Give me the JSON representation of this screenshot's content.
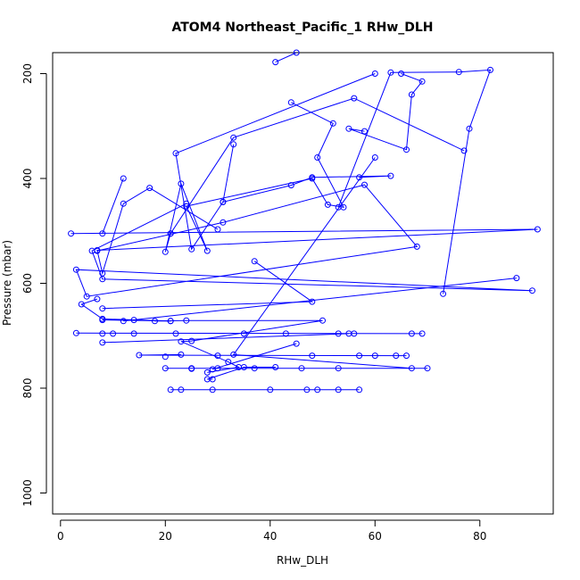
{
  "chart_data": {
    "type": "scatter",
    "title": "ATOM4 Northeast_Pacific_1 RHw_DLH",
    "xlabel": "RHw_DLH",
    "ylabel": "Pressure (mbar)",
    "xlim": [
      -1.5,
      94
    ],
    "ylim": [
      1040,
      160
    ],
    "y_inverted": true,
    "x_ticks": [
      0,
      20,
      40,
      60,
      80
    ],
    "y_ticks": [
      200,
      400,
      600,
      800,
      1000
    ],
    "grid": false,
    "color": "#0000ff",
    "marker": "open-circle",
    "series": [
      {
        "points": [
          [
            41,
            178
          ],
          [
            45,
            160
          ],
          [
            44,
            255
          ],
          [
            52,
            295
          ],
          [
            49,
            360
          ],
          [
            54,
            455
          ],
          [
            51,
            450
          ],
          [
            48,
            400
          ],
          [
            24,
            453
          ],
          [
            28,
            538
          ],
          [
            23,
            410
          ],
          [
            20,
            540
          ],
          [
            21,
            505
          ],
          [
            2,
            505
          ],
          [
            91,
            497
          ],
          [
            7,
            537
          ],
          [
            8,
            581
          ],
          [
            12,
            448
          ],
          [
            17,
            418
          ],
          [
            30,
            497
          ],
          [
            8,
            505
          ],
          [
            12,
            400
          ],
          [
            31,
            445
          ],
          [
            25,
            535
          ],
          [
            22,
            352
          ],
          [
            24,
            448
          ],
          [
            6,
            538
          ],
          [
            8,
            592
          ],
          [
            90,
            614
          ],
          [
            3,
            574
          ],
          [
            5,
            625
          ],
          [
            68,
            530
          ],
          [
            58,
            412
          ],
          [
            31,
            484
          ],
          [
            7,
            538
          ],
          [
            14,
            670
          ],
          [
            8,
            670
          ],
          [
            21,
            672
          ],
          [
            18,
            672
          ],
          [
            24,
            671
          ],
          [
            50,
            671
          ],
          [
            25,
            710
          ],
          [
            23,
            711
          ],
          [
            32,
            750
          ],
          [
            34,
            760
          ],
          [
            28,
            770
          ],
          [
            37,
            558
          ],
          [
            48,
            635
          ],
          [
            8,
            648
          ],
          [
            7,
            630
          ],
          [
            4,
            640
          ],
          [
            8,
            668
          ],
          [
            21,
            672
          ],
          [
            33,
            335
          ],
          [
            31,
            445
          ],
          [
            44,
            413
          ],
          [
            48,
            398
          ],
          [
            63,
            395
          ],
          [
            57,
            398
          ],
          [
            3,
            695
          ],
          [
            10,
            696
          ],
          [
            8,
            696
          ],
          [
            14,
            696
          ],
          [
            22,
            696
          ],
          [
            35,
            696
          ],
          [
            43,
            696
          ],
          [
            53,
            696
          ],
          [
            67,
            696
          ],
          [
            69,
            696
          ],
          [
            56,
            696
          ],
          [
            45,
            715
          ],
          [
            29,
            764
          ],
          [
            23,
            736
          ],
          [
            15,
            737
          ],
          [
            20,
            740
          ],
          [
            30,
            738
          ],
          [
            48,
            738
          ],
          [
            57,
            738
          ],
          [
            64,
            738
          ],
          [
            60,
            738
          ],
          [
            66,
            738
          ],
          [
            70,
            762
          ],
          [
            53,
            762
          ],
          [
            46,
            762
          ],
          [
            37,
            762
          ],
          [
            30,
            762
          ],
          [
            25,
            762
          ],
          [
            20,
            762
          ],
          [
            21,
            803
          ],
          [
            23,
            803
          ],
          [
            29,
            803
          ],
          [
            40,
            803
          ],
          [
            47,
            803
          ],
          [
            49,
            803
          ],
          [
            53,
            803
          ],
          [
            57,
            803
          ],
          [
            29,
            783
          ],
          [
            28,
            783
          ],
          [
            35,
            760
          ],
          [
            41,
            760
          ],
          [
            60,
            200
          ],
          [
            65,
            200
          ],
          [
            69,
            215
          ],
          [
            67,
            240
          ],
          [
            66,
            345
          ],
          [
            55,
            305
          ],
          [
            58,
            310
          ],
          [
            53,
            455
          ],
          [
            63,
            198
          ],
          [
            76,
            197
          ],
          [
            82,
            193
          ],
          [
            78,
            305
          ],
          [
            73,
            620
          ],
          [
            77,
            347
          ],
          [
            56,
            247
          ],
          [
            87,
            590
          ],
          [
            12,
            672
          ],
          [
            33,
            322
          ],
          [
            21,
            505
          ],
          [
            60,
            360
          ],
          [
            33,
            736
          ],
          [
            67,
            762
          ],
          [
            55,
            696
          ],
          [
            8,
            713
          ],
          [
            25,
            763
          ]
        ],
        "paths": [
          [
            [
              41,
              178
            ],
            [
              45,
              160
            ]
          ],
          [
            [
              44,
              255
            ],
            [
              52,
              295
            ],
            [
              49,
              360
            ],
            [
              54,
              455
            ],
            [
              51,
              450
            ],
            [
              48,
              400
            ],
            [
              24,
              453
            ],
            [
              28,
              538
            ],
            [
              23,
              410
            ],
            [
              20,
              540
            ],
            [
              21,
              505
            ]
          ],
          [
            [
              2,
              505
            ],
            [
              91,
              497
            ],
            [
              7,
              537
            ],
            [
              8,
              581
            ],
            [
              12,
              448
            ],
            [
              17,
              418
            ],
            [
              30,
              497
            ]
          ],
          [
            [
              8,
              505
            ],
            [
              12,
              400
            ]
          ],
          [
            [
              31,
              445
            ],
            [
              25,
              535
            ],
            [
              22,
              352
            ],
            [
              60,
              200
            ]
          ],
          [
            [
              24,
              448
            ],
            [
              6,
              538
            ],
            [
              8,
              592
            ],
            [
              90,
              614
            ],
            [
              3,
              574
            ],
            [
              5,
              625
            ],
            [
              68,
              530
            ],
            [
              58,
              412
            ],
            [
              31,
              484
            ],
            [
              7,
              538
            ]
          ],
          [
            [
              14,
              670
            ],
            [
              8,
              670
            ],
            [
              21,
              672
            ],
            [
              18,
              672
            ],
            [
              24,
              671
            ],
            [
              50,
              671
            ],
            [
              25,
              710
            ],
            [
              23,
              711
            ],
            [
              32,
              750
            ],
            [
              34,
              760
            ],
            [
              28,
              770
            ]
          ],
          [
            [
              37,
              558
            ],
            [
              48,
              635
            ],
            [
              8,
              648
            ]
          ],
          [
            [
              7,
              630
            ],
            [
              4,
              640
            ],
            [
              8,
              668
            ],
            [
              21,
              672
            ]
          ],
          [
            [
              33,
              335
            ],
            [
              31,
              445
            ],
            [
              44,
              413
            ],
            [
              48,
              398
            ],
            [
              63,
              395
            ],
            [
              57,
              398
            ]
          ],
          [
            [
              3,
              695
            ],
            [
              69,
              696
            ]
          ],
          [
            [
              45,
              715
            ],
            [
              29,
              764
            ]
          ],
          [
            [
              23,
              736
            ],
            [
              15,
              737
            ],
            [
              66,
              738
            ]
          ],
          [
            [
              20,
              762
            ],
            [
              70,
              762
            ]
          ],
          [
            [
              21,
              803
            ],
            [
              57,
              803
            ]
          ],
          [
            [
              29,
              783
            ],
            [
              28,
              783
            ],
            [
              35,
              760
            ],
            [
              41,
              760
            ]
          ],
          [
            [
              65,
              200
            ],
            [
              69,
              215
            ],
            [
              67,
              240
            ],
            [
              66,
              345
            ],
            [
              55,
              305
            ],
            [
              58,
              310
            ]
          ],
          [
            [
              53,
              455
            ],
            [
              63,
              198
            ],
            [
              76,
              197
            ],
            [
              82,
              193
            ],
            [
              78,
              305
            ],
            [
              73,
              620
            ]
          ],
          [
            [
              77,
              347
            ],
            [
              56,
              247
            ],
            [
              33,
              322
            ],
            [
              21,
              505
            ]
          ],
          [
            [
              87,
              590
            ],
            [
              12,
              672
            ]
          ],
          [
            [
              60,
              360
            ],
            [
              33,
              736
            ],
            [
              67,
              762
            ]
          ],
          [
            [
              55,
              696
            ],
            [
              8,
              713
            ]
          ]
        ]
      }
    ]
  }
}
